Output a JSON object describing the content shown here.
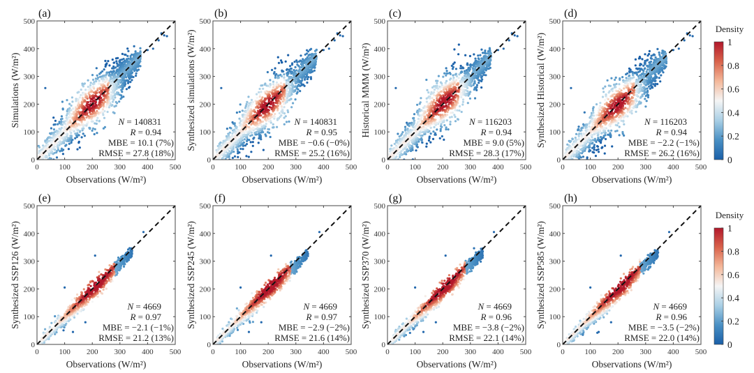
{
  "figure": {
    "colorbar_title": "Density",
    "colorbar_ticks": [
      "0",
      "0.2",
      "0.4",
      "0.6",
      "0.8",
      "1"
    ],
    "colormap": [
      "#1a5fa8",
      "#4a90c4",
      "#a9cfe5",
      "#f5f5f5",
      "#f4b89a",
      "#d9634b",
      "#b2182b"
    ]
  },
  "chart_data": [
    {
      "type": "scatter",
      "panel": "(a)",
      "title": "(a)",
      "xlabel": "Observations (W/m²)",
      "ylabel": "Simulations (W/m²)",
      "xlim": [
        0,
        500
      ],
      "ylim": [
        0,
        500
      ],
      "xticks": [
        "0",
        "100",
        "200",
        "300",
        "400",
        "500"
      ],
      "yticks": [
        "0",
        "100",
        "200",
        "300",
        "400",
        "500"
      ],
      "reference_line": "1:1 dashed",
      "color_by": "Density",
      "density_peak": [
        200,
        205
      ],
      "spread": "wide",
      "stats": {
        "N": "140831",
        "R": "0.94",
        "MBE": "10.1 (7%)",
        "RMSE": "27.8 (18%)"
      }
    },
    {
      "type": "scatter",
      "panel": "(b)",
      "title": "(b)",
      "xlabel": "Observations (W/m²)",
      "ylabel": "Synthesized simulations (W/m²)",
      "xlim": [
        0,
        500
      ],
      "ylim": [
        0,
        500
      ],
      "xticks": [
        "0",
        "100",
        "200",
        "300",
        "400",
        "500"
      ],
      "yticks": [
        "0",
        "100",
        "200",
        "300",
        "400",
        "500"
      ],
      "reference_line": "1:1 dashed",
      "color_by": "Density",
      "density_peak": [
        200,
        195
      ],
      "spread": "wide",
      "stats": {
        "N": "140831",
        "R": "0.95",
        "MBE": "−0.6 (−0%)",
        "RMSE": "25.2 (16%)"
      }
    },
    {
      "type": "scatter",
      "panel": "(c)",
      "title": "(c)",
      "xlabel": "Observations (W/m²)",
      "ylabel": "Historical MMM (W/m²)",
      "xlim": [
        0,
        500
      ],
      "ylim": [
        0,
        500
      ],
      "xticks": [
        "0",
        "100",
        "200",
        "300",
        "400",
        "500"
      ],
      "yticks": [
        "0",
        "100",
        "200",
        "300",
        "400",
        "500"
      ],
      "reference_line": "1:1 dashed",
      "color_by": "Density",
      "density_peak": [
        205,
        210
      ],
      "spread": "wide",
      "stats": {
        "N": "116203",
        "R": "0.94",
        "MBE": "9.0 (5%)",
        "RMSE": "28.3 (17%)"
      }
    },
    {
      "type": "scatter",
      "panel": "(d)",
      "title": "(d)",
      "xlabel": "Observations (W/m²)",
      "ylabel": "Synthesized Historical (W/m²)",
      "xlim": [
        0,
        500
      ],
      "ylim": [
        0,
        500
      ],
      "xticks": [
        "0",
        "100",
        "200",
        "300",
        "400",
        "500"
      ],
      "yticks": [
        "0",
        "100",
        "200",
        "300",
        "400",
        "500"
      ],
      "reference_line": "1:1 dashed",
      "color_by": "Density",
      "density_peak": [
        200,
        195
      ],
      "spread": "wide",
      "stats": {
        "N": "116203",
        "R": "0.94",
        "MBE": "−2.2 (−1%)",
        "RMSE": "26.2 (16%)"
      }
    },
    {
      "type": "scatter",
      "panel": "(e)",
      "title": "(e)",
      "xlabel": "Observations (W/m²)",
      "ylabel": "Synthesized SSP126 (W/m²)",
      "xlim": [
        0,
        500
      ],
      "ylim": [
        0,
        500
      ],
      "xticks": [
        "0",
        "100",
        "200",
        "300",
        "400",
        "500"
      ],
      "yticks": [
        "0",
        "100",
        "200",
        "300",
        "400",
        "500"
      ],
      "reference_line": "1:1 dashed",
      "color_by": "Density",
      "density_peak": [
        215,
        210
      ],
      "spread": "narrow",
      "stats": {
        "N": "4669",
        "R": "0.97",
        "MBE": "−2.1 (−1%)",
        "RMSE": "21.2 (13%)"
      }
    },
    {
      "type": "scatter",
      "panel": "(f)",
      "title": "(f)",
      "xlabel": "Observations (W/m²)",
      "ylabel": "Synthesized SSP245 (W/m²)",
      "xlim": [
        0,
        500
      ],
      "ylim": [
        0,
        500
      ],
      "xticks": [
        "0",
        "100",
        "200",
        "300",
        "400",
        "500"
      ],
      "yticks": [
        "0",
        "100",
        "200",
        "300",
        "400",
        "500"
      ],
      "reference_line": "1:1 dashed",
      "color_by": "Density",
      "density_peak": [
        215,
        205
      ],
      "spread": "narrow",
      "stats": {
        "N": "4669",
        "R": "0.97",
        "MBE": "−2.9 (−2%)",
        "RMSE": "21.6 (14%)"
      }
    },
    {
      "type": "scatter",
      "panel": "(g)",
      "title": "(g)",
      "xlabel": "Observations (W/m²)",
      "ylabel": "Synthesized SSP370 (W/m²)",
      "xlim": [
        0,
        500
      ],
      "ylim": [
        0,
        500
      ],
      "xticks": [
        "0",
        "100",
        "200",
        "300",
        "400",
        "500"
      ],
      "yticks": [
        "0",
        "100",
        "200",
        "300",
        "400",
        "500"
      ],
      "reference_line": "1:1 dashed",
      "color_by": "Density",
      "density_peak": [
        215,
        205
      ],
      "spread": "narrow",
      "stats": {
        "N": "4669",
        "R": "0.96",
        "MBE": "−3.8 (−2%)",
        "RMSE": "22.1 (14%)"
      }
    },
    {
      "type": "scatter",
      "panel": "(h)",
      "title": "(h)",
      "xlabel": "Observations (W/m²)",
      "ylabel": "Synthesized SSP585 (W/m²)",
      "xlim": [
        0,
        500
      ],
      "ylim": [
        0,
        500
      ],
      "xticks": [
        "0",
        "100",
        "200",
        "300",
        "400",
        "500"
      ],
      "yticks": [
        "0",
        "100",
        "200",
        "300",
        "400",
        "500"
      ],
      "reference_line": "1:1 dashed",
      "color_by": "Density",
      "density_peak": [
        215,
        205
      ],
      "spread": "narrow",
      "stats": {
        "N": "4669",
        "R": "0.96",
        "MBE": "−3.5 (−2%)",
        "RMSE": "22.0 (14%)"
      }
    }
  ]
}
